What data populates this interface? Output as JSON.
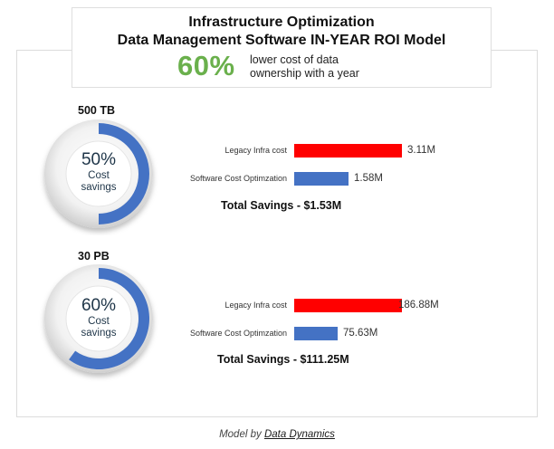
{
  "header": {
    "title_line1": "Infrastructure Optimization",
    "title_line2": "Data Management Software IN-YEAR ROI Model",
    "headline_percent": "60%",
    "headline_desc_line1": "lower cost of data",
    "headline_desc_line2": "ownership with a year",
    "headline_color": "#6ab04c"
  },
  "colors": {
    "legacy": "#ff0000",
    "software": "#4472c4",
    "donut_track": "#e8e8e8"
  },
  "chart_data": [
    {
      "type": "bar",
      "section_label": "500 TB",
      "donut": {
        "percent_value": 0.5,
        "percent_text": "50%",
        "sub_line1": "Cost",
        "sub_line2": "savings"
      },
      "categories": [
        "Legacy Infra cost",
        "Software Cost Optimzation"
      ],
      "values": [
        3.11,
        1.58
      ],
      "value_labels": [
        "3.11M",
        "1.58M"
      ],
      "units": "M",
      "total_text": "Total Savings - $1.53M"
    },
    {
      "type": "bar",
      "section_label": "30 PB",
      "donut": {
        "percent_value": 0.6,
        "percent_text": "60%",
        "sub_line1": "Cost",
        "sub_line2": "savings"
      },
      "categories": [
        "Legacy Infra cost",
        "Software Cost Optimzation"
      ],
      "values": [
        186.88,
        75.63
      ],
      "value_labels": [
        "186.88M",
        "75.63M"
      ],
      "units": "M",
      "total_text": "Total Savings - $111.25M"
    }
  ],
  "footer": {
    "prefix": "Model by",
    "link": "Data Dynamics"
  }
}
